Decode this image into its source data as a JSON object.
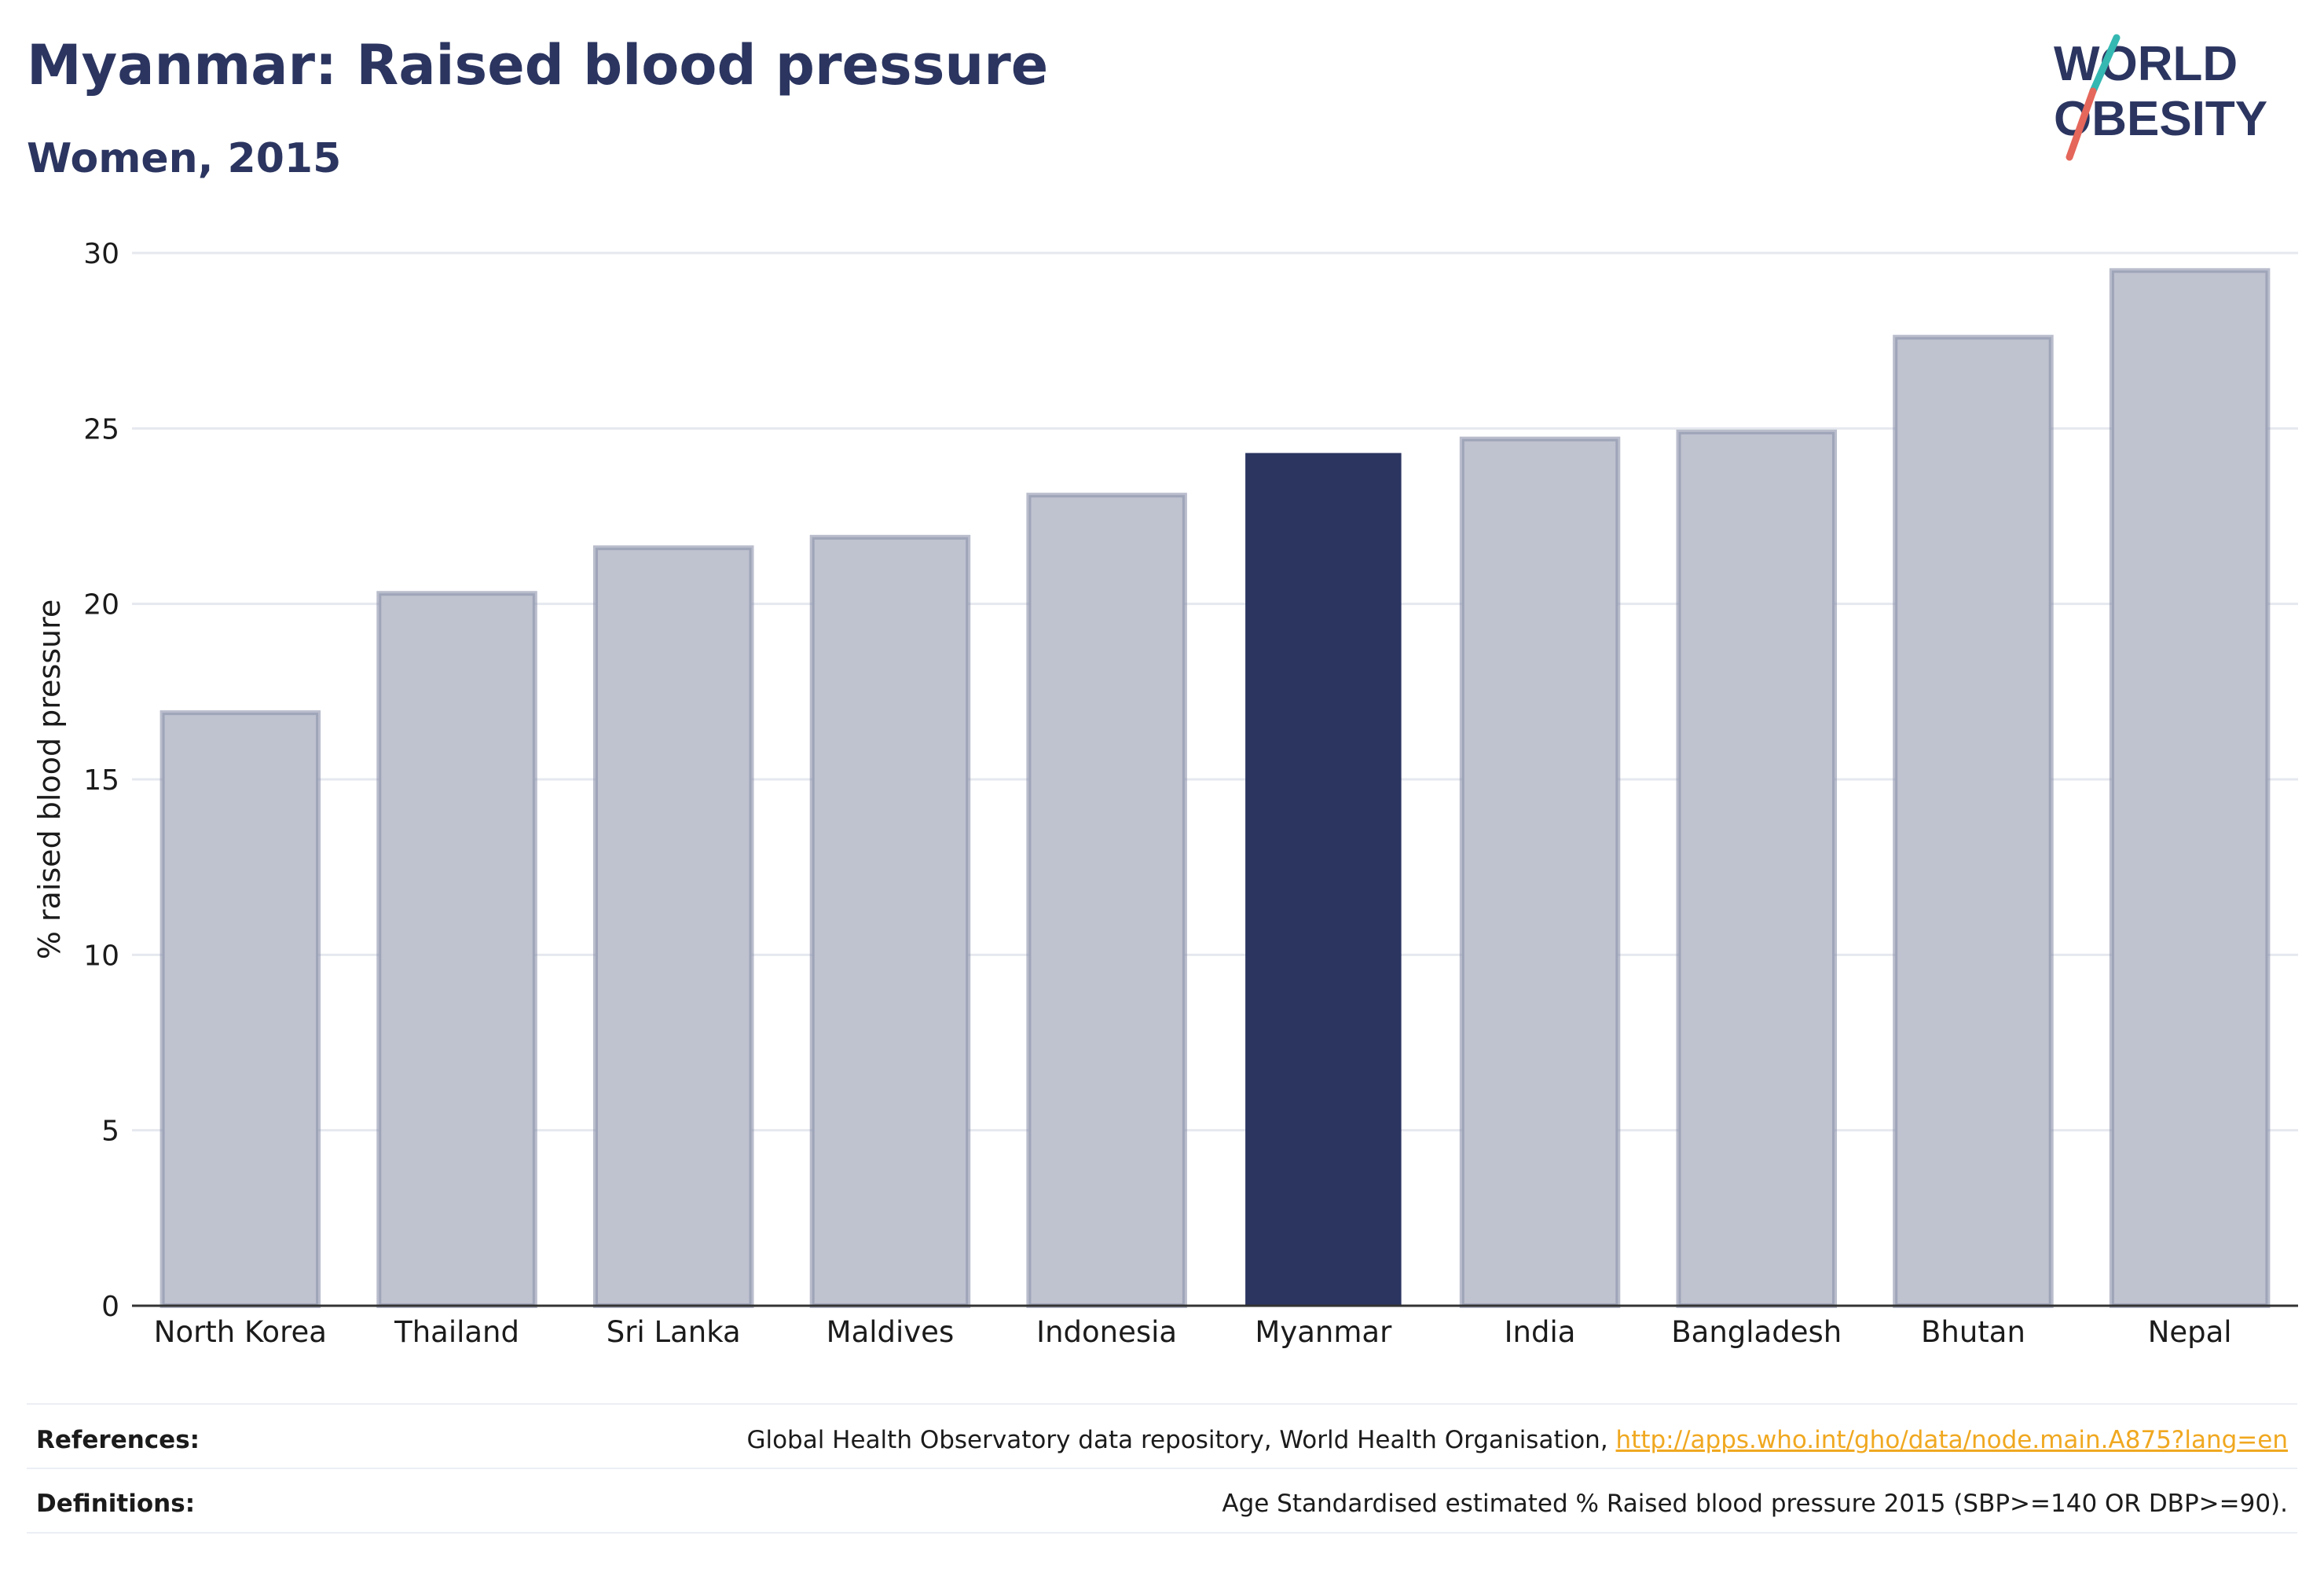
{
  "header": {
    "title": "Myanmar: Raised blood pressure",
    "subtitle": "Women, 2015"
  },
  "logo": {
    "line1": "WORLD",
    "line2": "OBESITY",
    "text_color": "#2b3560",
    "slash_colors": [
      "#35b8b2",
      "#e5665a"
    ]
  },
  "chart_data": {
    "type": "bar",
    "categories": [
      "North Korea",
      "Thailand",
      "Sri Lanka",
      "Maldives",
      "Indonesia",
      "Myanmar",
      "India",
      "Bangladesh",
      "Bhutan",
      "Nepal"
    ],
    "values": [
      16.9,
      20.3,
      21.6,
      21.9,
      23.1,
      24.3,
      24.7,
      24.9,
      27.6,
      29.5
    ],
    "highlight": "Myanmar",
    "ylabel": "% raised blood pressure",
    "xlabel": "",
    "ylim": [
      0,
      30
    ],
    "yticks": [
      0,
      5,
      10,
      15,
      20,
      25,
      30
    ],
    "grid": true,
    "colors": {
      "bar": "#bfc2cf",
      "bar_border": "#8b91aa",
      "highlight": "#2b3560",
      "grid": "#e6e8ef",
      "axis": "#333333"
    }
  },
  "footer": {
    "references_label": "References:",
    "references_text": "Global Health Observatory data repository, World Health Organisation, ",
    "references_link": "http://apps.who.int/gho/data/node.main.A875?lang=en",
    "definitions_label": "Definitions:",
    "definitions_text": "Age Standardised estimated % Raised blood pressure 2015 (SBP>=140 OR DBP>=90)."
  }
}
